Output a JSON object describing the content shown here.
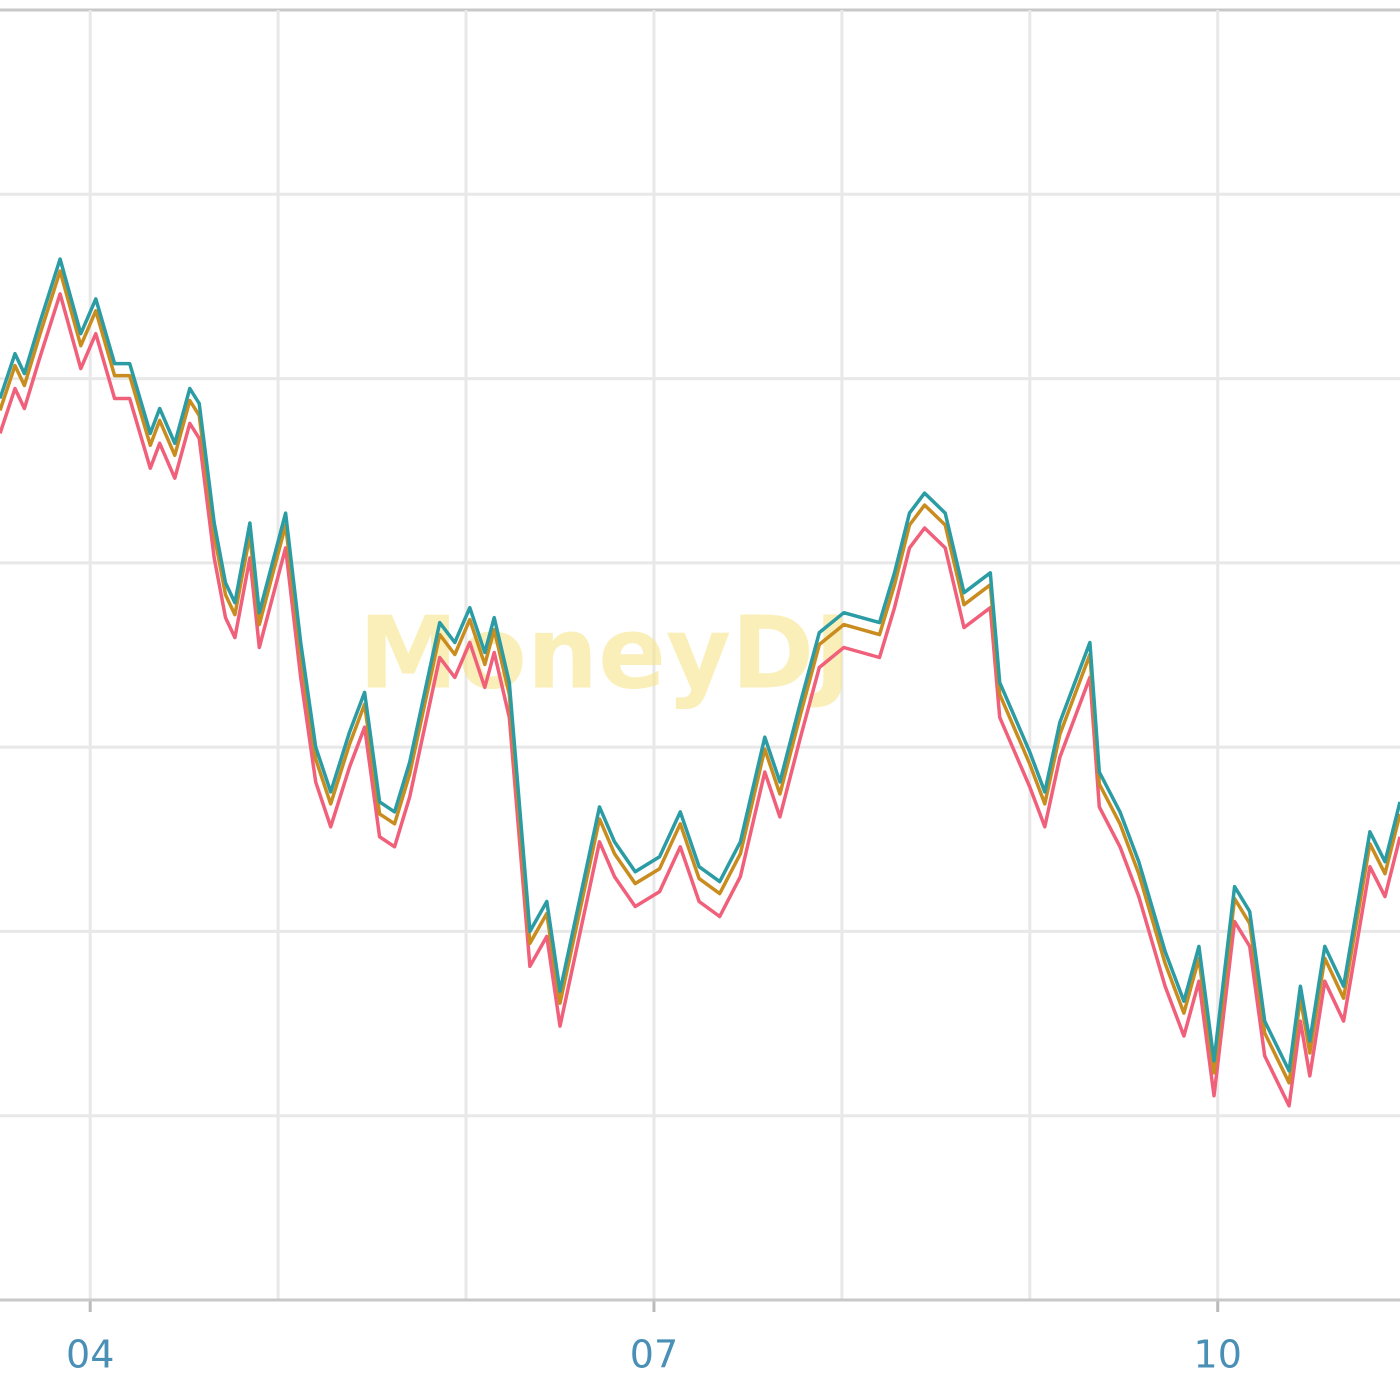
{
  "chart_data": {
    "type": "line",
    "watermark": "MoneyDJ",
    "x": [
      3.52,
      3.6,
      3.65,
      3.73,
      3.84,
      3.95,
      4.03,
      4.13,
      4.21,
      4.32,
      4.37,
      4.45,
      4.53,
      4.58,
      4.66,
      4.72,
      4.77,
      4.85,
      4.9,
      5.04,
      5.12,
      5.2,
      5.28,
      5.38,
      5.46,
      5.54,
      5.62,
      5.7,
      5.86,
      5.94,
      6.02,
      6.1,
      6.15,
      6.23,
      6.34,
      6.43,
      6.5,
      6.58,
      6.71,
      6.79,
      6.9,
      7.03,
      7.14,
      7.24,
      7.35,
      7.46,
      7.59,
      7.67,
      7.78,
      7.88,
      8.01,
      8.2,
      8.28,
      8.36,
      8.44,
      8.55,
      8.65,
      8.79,
      8.84,
      9.0,
      9.08,
      9.16,
      9.32,
      9.37,
      9.48,
      9.58,
      9.72,
      9.82,
      9.9,
      9.98,
      10.09,
      10.17,
      10.25,
      10.38,
      10.44,
      10.49,
      10.57,
      10.67,
      10.81,
      10.89,
      10.97
    ],
    "series": [
      {
        "color": "#f0607a",
        "values": [
          8.7,
          9.15,
          8.95,
          9.45,
          10.1,
          9.35,
          9.7,
          9.05,
          9.05,
          8.35,
          8.6,
          8.25,
          8.8,
          8.65,
          7.45,
          6.85,
          6.65,
          7.45,
          6.55,
          7.55,
          6.25,
          5.2,
          4.75,
          5.35,
          5.75,
          4.65,
          4.55,
          5.05,
          6.45,
          6.25,
          6.6,
          6.15,
          6.5,
          5.85,
          3.35,
          3.65,
          2.75,
          3.45,
          4.6,
          4.25,
          3.95,
          4.1,
          4.55,
          4.0,
          3.85,
          4.25,
          5.3,
          4.85,
          5.65,
          6.35,
          6.55,
          6.45,
          6.95,
          7.55,
          7.75,
          7.55,
          6.75,
          6.95,
          5.85,
          5.15,
          4.75,
          5.45,
          6.25,
          4.95,
          4.55,
          4.05,
          3.15,
          2.65,
          3.2,
          2.05,
          3.8,
          3.55,
          2.45,
          1.95,
          2.8,
          2.25,
          3.2,
          2.8,
          4.35,
          4.05,
          4.65
        ]
      },
      {
        "color": "#c98c1e",
        "values": [
          8.93,
          9.38,
          9.18,
          9.68,
          10.33,
          9.58,
          9.93,
          9.28,
          9.28,
          8.58,
          8.83,
          8.48,
          9.03,
          8.88,
          7.68,
          7.08,
          6.88,
          7.68,
          6.78,
          7.78,
          6.48,
          5.43,
          4.98,
          5.58,
          5.98,
          4.88,
          4.78,
          5.28,
          6.68,
          6.48,
          6.83,
          6.38,
          6.73,
          6.08,
          3.58,
          3.88,
          2.98,
          3.68,
          4.83,
          4.48,
          4.18,
          4.33,
          4.78,
          4.23,
          4.08,
          4.48,
          5.53,
          5.08,
          5.88,
          6.58,
          6.78,
          6.68,
          7.18,
          7.78,
          7.98,
          7.78,
          6.98,
          7.18,
          6.08,
          5.38,
          4.98,
          5.68,
          6.48,
          5.18,
          4.78,
          4.28,
          3.38,
          2.88,
          3.43,
          2.28,
          4.03,
          3.78,
          2.68,
          2.18,
          3.03,
          2.48,
          3.43,
          3.03,
          4.58,
          4.28,
          4.88
        ]
      },
      {
        "color": "#2b9ca3",
        "values": [
          9.05,
          9.5,
          9.3,
          9.8,
          10.45,
          9.7,
          10.05,
          9.4,
          9.4,
          8.7,
          8.95,
          8.6,
          9.15,
          9.0,
          7.8,
          7.2,
          7.0,
          7.8,
          6.9,
          7.9,
          6.6,
          5.55,
          5.1,
          5.7,
          6.1,
          5.0,
          4.9,
          5.4,
          6.8,
          6.6,
          6.95,
          6.5,
          6.85,
          6.2,
          3.7,
          4.0,
          3.1,
          3.8,
          4.95,
          4.6,
          4.3,
          4.45,
          4.9,
          4.35,
          4.2,
          4.6,
          5.65,
          5.2,
          6.0,
          6.7,
          6.9,
          6.8,
          7.3,
          7.9,
          8.1,
          7.9,
          7.1,
          7.3,
          6.2,
          5.5,
          5.1,
          5.8,
          6.6,
          5.3,
          4.9,
          4.4,
          3.5,
          3.0,
          3.55,
          2.4,
          4.15,
          3.9,
          2.8,
          2.3,
          3.15,
          2.6,
          3.55,
          3.15,
          4.7,
          4.4,
          5.0
        ]
      }
    ],
    "xlim": [
      3.52,
      10.97
    ],
    "xticks": [
      {
        "value": 4,
        "label": "04"
      },
      {
        "value": 7,
        "label": "07"
      },
      {
        "value": 10,
        "label": "10"
      }
    ],
    "xminor": [
      5,
      6,
      8,
      9
    ],
    "ylim": [
      0,
      12.95
    ],
    "yticks": [
      0,
      1.85,
      3.7,
      5.55,
      7.4,
      9.25,
      11.1,
      12.95
    ],
    "grid": true
  }
}
